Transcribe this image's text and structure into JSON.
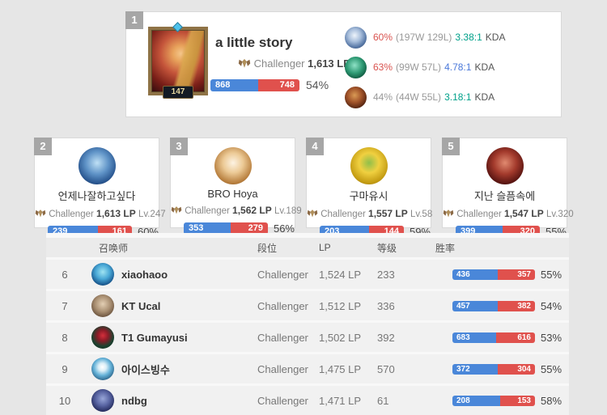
{
  "colors": {
    "page_bg": "#e6e6e6",
    "win_blue": "#4a87d9",
    "loss_red": "#e0514d",
    "winrate_red_text": "#d9534f",
    "kda_teal_text": "#00a18a",
    "kda_blue_text": "#4a78d9",
    "rank_badge_gray": "#a6a6a6"
  },
  "icons": {
    "challenger_crest": "bronze-winged-crest",
    "rank_badge": "gray-square-number",
    "avatar_gem": "blue-diamond-gem"
  },
  "top_player": {
    "rank": "1",
    "level": "147",
    "name": "a little story",
    "tier": "Challenger",
    "lp": "1,613 LP",
    "wins": "868",
    "losses": "748",
    "win_pct": "54%",
    "blue_pct": 53.7,
    "champions": [
      {
        "win_rate": "60%",
        "record": "(197W 129L)",
        "kda": "3.38:1",
        "kda_label": "KDA"
      },
      {
        "win_rate": "63%",
        "record": "(99W 57L)",
        "kda": "4.78:1",
        "kda_label": "KDA"
      },
      {
        "win_rate": "44%",
        "record": "(44W 55L)",
        "kda": "3.18:1",
        "kda_label": "KDA"
      }
    ]
  },
  "cards": [
    {
      "rank": "2",
      "name": "언제나잘하고싶다",
      "tier": "Challenger",
      "lp": "1,613 LP",
      "level": "Lv.247",
      "wins": "239",
      "losses": "161",
      "win_pct": "60%",
      "blue_pct": 59.8
    },
    {
      "rank": "3",
      "name": "BRO Hoya",
      "tier": "Challenger",
      "lp": "1,562 LP",
      "level": "Lv.189",
      "wins": "353",
      "losses": "279",
      "win_pct": "56%",
      "blue_pct": 55.9
    },
    {
      "rank": "4",
      "name": "구마유시",
      "tier": "Challenger",
      "lp": "1,557 LP",
      "level": "Lv.58",
      "wins": "203",
      "losses": "144",
      "win_pct": "59%",
      "blue_pct": 58.5
    },
    {
      "rank": "5",
      "name": "지난 슬픔속에",
      "tier": "Challenger",
      "lp": "1,547 LP",
      "level": "Lv.320",
      "wins": "399",
      "losses": "320",
      "win_pct": "55%",
      "blue_pct": 55.5
    }
  ],
  "table": {
    "headers": [
      "召唤师",
      "段位",
      "LP",
      "等级",
      "胜率"
    ],
    "rows": [
      {
        "rank": "6",
        "name": "xiaohaoo",
        "tier": "Challenger",
        "lp": "1,524 LP",
        "level": "233",
        "wins": "436",
        "losses": "357",
        "win_pct": "55%",
        "blue_pct": 55.0
      },
      {
        "rank": "7",
        "name": "KT Ucal",
        "tier": "Challenger",
        "lp": "1,512 LP",
        "level": "336",
        "wins": "457",
        "losses": "382",
        "win_pct": "54%",
        "blue_pct": 54.5
      },
      {
        "rank": "8",
        "name": "T1 Gumayusi",
        "tier": "Challenger",
        "lp": "1,502 LP",
        "level": "392",
        "wins": "683",
        "losses": "616",
        "win_pct": "53%",
        "blue_pct": 52.6
      },
      {
        "rank": "9",
        "name": "아이스빙수",
        "tier": "Challenger",
        "lp": "1,475 LP",
        "level": "570",
        "wins": "372",
        "losses": "304",
        "win_pct": "55%",
        "blue_pct": 55.0
      },
      {
        "rank": "10",
        "name": "ndbg",
        "tier": "Challenger",
        "lp": "1,471 LP",
        "level": "61",
        "wins": "208",
        "losses": "153",
        "win_pct": "58%",
        "blue_pct": 57.6
      }
    ]
  }
}
